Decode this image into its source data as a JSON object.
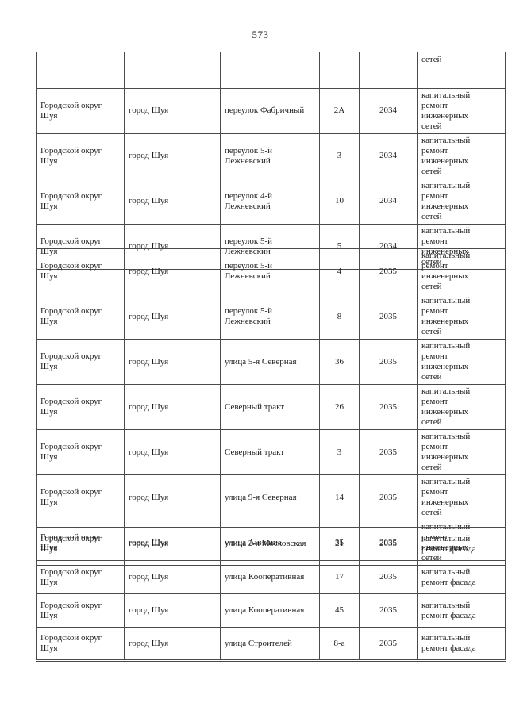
{
  "page": {
    "number": "573"
  },
  "table": {
    "column_keys": [
      "municipality",
      "settlement",
      "street",
      "house",
      "year",
      "work"
    ],
    "sections": [
      {
        "name": "section-2034-networks",
        "rows": [
          {
            "continuation": true,
            "municipality": "",
            "settlement": "",
            "street": "",
            "house": "",
            "year": "",
            "work": "сетей"
          },
          {
            "municipality": "Городской округ Шуя",
            "settlement": "город Шуя",
            "street": "переулок Фабричный",
            "house": "2А",
            "year": "2034",
            "work": "капитальный\nремонт\nинженерных\nсетей"
          },
          {
            "municipality": "Городской округ Шуя",
            "settlement": "город Шуя",
            "street": "переулок 5-й Лежневский",
            "house": "3",
            "year": "2034",
            "work": "капитальный\nремонт\nинженерных\nсетей"
          },
          {
            "municipality": "Городской округ Шуя",
            "settlement": "город Шуя",
            "street": "переулок 4-й Лежневский",
            "house": "10",
            "year": "2034",
            "work": "капитальный\nремонт\nинженерных\nсетей"
          },
          {
            "municipality": "Городской округ Шуя",
            "settlement": "город Шуя",
            "street": "переулок 5-й Лежневский",
            "house": "5",
            "year": "2034",
            "work": "капитальный\nремонт\nинженерных\nсетей"
          }
        ]
      },
      {
        "name": "section-2035-networks",
        "rows": [
          {
            "municipality": "Городской округ Шуя",
            "settlement": "город Шуя",
            "street": "переулок 5-й Лежневский",
            "house": "4",
            "year": "2035",
            "work": "капитальный\nремонт\nинженерных\nсетей"
          },
          {
            "municipality": "Городской округ Шуя",
            "settlement": "город Шуя",
            "street": "переулок 5-й Лежневский",
            "house": "8",
            "year": "2035",
            "work": "капитальный\nремонт\nинженерных\nсетей"
          },
          {
            "municipality": "Городской округ Шуя",
            "settlement": "город Шуя",
            "street": "улица 5-я Северная",
            "house": "36",
            "year": "2035",
            "work": "капитальный\nремонт\nинженерных\nсетей"
          },
          {
            "municipality": "Городской округ Шуя",
            "settlement": "город Шуя",
            "street": "Северный тракт",
            "house": "26",
            "year": "2035",
            "work": "капитальный\nремонт\nинженерных\nсетей"
          },
          {
            "municipality": "Городской округ Шуя",
            "settlement": "город Шуя",
            "street": "Северный тракт",
            "house": "3",
            "year": "2035",
            "work": "капитальный\nремонт\nинженерных\nсетей"
          },
          {
            "municipality": "Городской округ Шуя",
            "settlement": "город Шуя",
            "street": "улица 9-я Северная",
            "house": "14",
            "year": "2035",
            "work": "капитальный\nремонт\nинженерных\nсетей"
          },
          {
            "municipality": "Городской округ Шуя",
            "settlement": "город Шуя",
            "street": "улица Аникина",
            "house": "35",
            "year": "2035",
            "work": "капитальный\nремонт\nинженерных\nсетей"
          }
        ]
      },
      {
        "name": "section-2035-facade",
        "rows": [
          {
            "municipality": "Городской округ Шуя",
            "settlement": "город Шуя",
            "street": "улица 2-я Московская",
            "house": "21",
            "year": "2035",
            "work": "капитальный\nремонт фасада"
          },
          {
            "municipality": "Городской округ Шуя",
            "settlement": "город Шуя",
            "street": "улица Кооперативная",
            "house": "17",
            "year": "2035",
            "work": "капитальный\nремонт фасада"
          },
          {
            "municipality": "Городской округ Шуя",
            "settlement": "город Шуя",
            "street": "улица Кооперативная",
            "house": "45",
            "year": "2035",
            "work": "капитальный\nремонт фасада"
          },
          {
            "municipality": "Городской округ Шуя",
            "settlement": "город Шуя",
            "street": "улица Строителей",
            "house": "8-а",
            "year": "2035",
            "work": "капитальный\nремонт фасада"
          }
        ]
      }
    ]
  }
}
